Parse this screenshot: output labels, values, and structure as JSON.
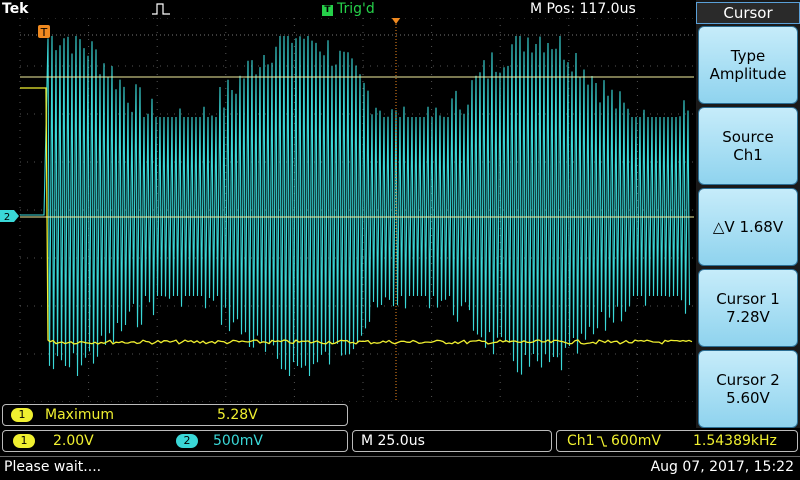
{
  "top_bar": {
    "brand": "Tek",
    "trigger_status": "Trig'd",
    "trigger_badge": "T",
    "horizontal_position": "M Pos: 117.0us"
  },
  "markers": {
    "trigger_marker": "T",
    "ch2_marker": "2"
  },
  "cursor_menu": {
    "title": "Cursor",
    "buttons": [
      {
        "line1": "Type",
        "line2": "Amplitude"
      },
      {
        "line1": "Source",
        "line2": "Ch1"
      },
      {
        "line1": "△V 1.68V",
        "line2": ""
      },
      {
        "line1": "Cursor 1",
        "line2": "7.28V"
      },
      {
        "line1": "Cursor 2",
        "line2": "5.60V"
      }
    ]
  },
  "measurement": {
    "channel": "1",
    "name": "Maximum",
    "value": "5.28V"
  },
  "channels": {
    "ch1": {
      "label": "1",
      "scale": "2.00V",
      "color": "#f0f030"
    },
    "ch2": {
      "label": "2",
      "scale": "500mV",
      "color": "#3ad8d8"
    }
  },
  "timebase": "M 25.0us",
  "trigger_readout": {
    "source": "Ch1",
    "slope_icon": "falling-edge-icon",
    "level": "600mV",
    "frequency": "1.54389kHz"
  },
  "status": {
    "message": "Please wait....",
    "datetime": "Aug 07, 2017, 15:22"
  },
  "colors": {
    "ch1": "#f0f030",
    "ch2": "#3ad8d8",
    "trigger": "#26d04a",
    "cursor_line": "#f3f0a0",
    "trigger_marker": "#f08a20"
  }
}
